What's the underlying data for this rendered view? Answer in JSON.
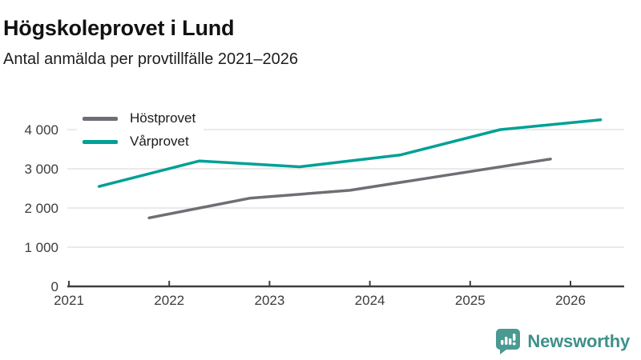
{
  "header": {
    "title": "Högskoleprovet i Lund",
    "subtitle": "Antal anmälda per provtillfälle 2021–2026"
  },
  "legend": [
    {
      "label": "Höstprovet",
      "color": "#6e6e74"
    },
    {
      "label": "Vårprovet",
      "color": "#00a096"
    }
  ],
  "chart_data": {
    "type": "line",
    "title": "Högskoleprovet i Lund",
    "subtitle": "Antal anmälda per provtillfälle 2021–2026",
    "xlabel": "",
    "ylabel": "",
    "x_ticks": [
      2021,
      2022,
      2023,
      2024,
      2025,
      2026
    ],
    "x_tick_labels": [
      "2021",
      "2022",
      "2023",
      "2024",
      "2025",
      "2026"
    ],
    "y_ticks": [
      0,
      1000,
      2000,
      3000,
      4000
    ],
    "y_tick_labels": [
      "0",
      "1 000",
      "2 000",
      "3 000",
      "4 000"
    ],
    "xlim": [
      2021,
      2026.55
    ],
    "ylim": [
      0,
      4450
    ],
    "grid": "horizontal",
    "legend_position": "top-left-inside",
    "series": [
      {
        "name": "Höstprovet",
        "color": "#6e6e74",
        "x": [
          2021.8,
          2022.8,
          2023.8,
          2024.8,
          2025.8
        ],
        "values": [
          1750,
          2250,
          2450,
          2850,
          3250
        ]
      },
      {
        "name": "Vårprovet",
        "color": "#00a096",
        "x": [
          2021.3,
          2022.3,
          2023.3,
          2024.3,
          2025.3,
          2026.3
        ],
        "values": [
          2550,
          3200,
          3050,
          3350,
          4000,
          4250
        ]
      }
    ],
    "colors": {
      "gridline": "#e4e4e4",
      "axis": "#3f3f3f",
      "tick_label": "#3c3c3c"
    }
  },
  "footer": {
    "brand": "Newsworthy",
    "brand_color": "#3f908a",
    "icon_color": "#4a9a92",
    "icon": "newsworthy-chart-bubble-icon"
  }
}
